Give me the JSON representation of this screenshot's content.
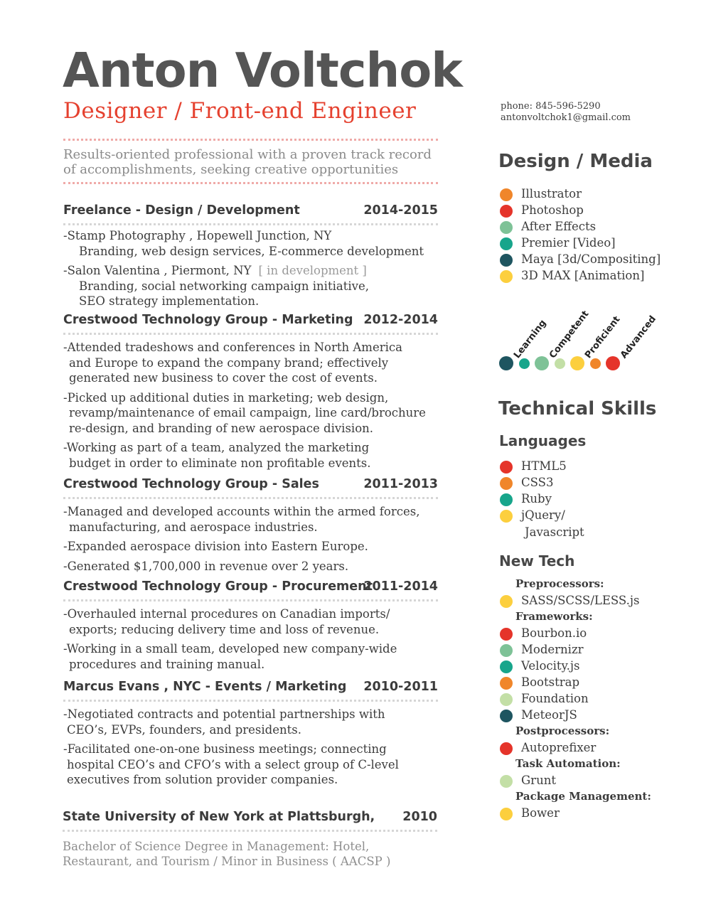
{
  "colors": {
    "accent_red": "#e5412f",
    "orange": "#f0862a",
    "red": "#e5342a",
    "sage": "#7ec297",
    "teal": "#17a58b",
    "dark_teal": "#1e5560",
    "yellow": "#fccf3e",
    "pale_green": "#c3dfa6"
  },
  "header": {
    "name": "Anton Voltchok",
    "title": "Designer / Front-end Engineer",
    "phone": "phone: 845-596-5290",
    "email": "antonvoltchok1@gmail.com"
  },
  "summary": {
    "line1": "Results-oriented professional with a proven track record",
    "line2": "of accomplishments, seeking creative opportunities"
  },
  "experience": [
    {
      "title": "Freelance - Design / Development",
      "years": "2014-2015",
      "entries": [
        {
          "lines": [
            "-Stamp Photography ,  Hopewell Junction, NY",
            "Branding, web design services, E-commerce development"
          ]
        },
        {
          "lines": [
            "-Salon Valentina  ,  Piermont, NY",
            "Branding, social networking campaign initiative,",
            "SEO strategy implementation."
          ],
          "note": "[ in development ]"
        }
      ]
    },
    {
      "title": "Crestwood Technology Group - Marketing",
      "years": "2012-2014",
      "entries": [
        {
          "lines": [
            "-Attended tradeshows and conferences in North America",
            "and Europe to expand the company brand; effectively",
            "generated new business to cover the cost of events."
          ]
        },
        {
          "lines": [
            "-Picked up additional duties in marketing; web design,",
            "revamp/maintenance of email campaign, line card/brochure",
            "re-design, and branding of new aerospace division."
          ]
        },
        {
          "lines": [
            "-Working as part of a team, analyzed the marketing",
            "budget in order to eliminate non profitable events."
          ]
        }
      ]
    },
    {
      "title": "Crestwood Technology Group - Sales",
      "years": "2011-2013",
      "entries": [
        {
          "lines": [
            "-Managed and developed accounts within the armed forces,",
            "manufacturing, and aerospace industries."
          ]
        },
        {
          "lines": [
            "-Expanded aerospace division into Eastern Europe."
          ]
        },
        {
          "lines": [
            "-Generated $1,700,000 in revenue over 2 years."
          ]
        }
      ]
    },
    {
      "title": "Crestwood Technology Group - Procurement",
      "years": "2011-2014",
      "entries": [
        {
          "lines": [
            "-Overhauled internal procedures on Canadian imports/",
            "exports; reducing delivery time and loss of revenue."
          ]
        },
        {
          "lines": [
            "-Working in a small team, developed new company-wide",
            "procedures and training manual."
          ]
        }
      ]
    },
    {
      "title": "Marcus Evans , NYC - Events / Marketing",
      "years": "2010-2011",
      "entries": [
        {
          "lines": [
            "-Negotiated contracts and potential partnerships with",
            "CEO’s,  EVPs, founders, and presidents."
          ]
        },
        {
          "lines": [
            "-Facilitated one-on-one business meetings; connecting",
            "hospital CEO’s and CFO’s with a select group of C-level",
            "executives from solution provider companies."
          ]
        }
      ]
    }
  ],
  "education": {
    "school": "State University of New York at Plattsburgh,",
    "year": "2010",
    "line1": "Bachelor of Science Degree in Management: Hotel,",
    "line2": "Restaurant, and Tourism / Minor in Business ( AACSP )"
  },
  "design_media": {
    "heading": "Design / Media",
    "items": [
      {
        "label": "Illustrator",
        "level": "orange"
      },
      {
        "label": "Photoshop",
        "level": "red"
      },
      {
        "label": "After Effects",
        "level": "sage"
      },
      {
        "label": "Premier [Video]",
        "level": "teal"
      },
      {
        "label": "Maya [3d/Compositing]",
        "level": "dark_teal"
      },
      {
        "label": "3D MAX [Animation]",
        "level": "yellow"
      }
    ]
  },
  "legend": {
    "labels": [
      "Learning",
      "Competent",
      "Proficient",
      "Advanced"
    ],
    "dots": [
      "dark_teal",
      "teal",
      "sage",
      "pale_green",
      "yellow",
      "orange",
      "red"
    ]
  },
  "technical": {
    "heading": "Technical Skills",
    "languages_heading": "Languages",
    "languages": [
      {
        "label": "HTML5",
        "level": "red"
      },
      {
        "label": "CSS3",
        "level": "orange"
      },
      {
        "label": "Ruby",
        "level": "teal"
      },
      {
        "label": "jQuery/",
        "level": "yellow"
      }
    ],
    "languages_cont": "Javascript",
    "newtech_heading": "New Tech",
    "categories": [
      {
        "name": "Preprocessors:",
        "items": [
          {
            "label": "SASS/SCSS/LESS.js",
            "level": "yellow"
          }
        ]
      },
      {
        "name": "Frameworks:",
        "items": [
          {
            "label": "Bourbon.io",
            "level": "red"
          },
          {
            "label": "Modernizr",
            "level": "sage"
          },
          {
            "label": "Velocity.js",
            "level": "teal"
          },
          {
            "label": "Bootstrap",
            "level": "orange"
          },
          {
            "label": "Foundation",
            "level": "pale_green"
          },
          {
            "label": "MeteorJS",
            "level": "dark_teal"
          }
        ]
      },
      {
        "name": "Postprocessors:",
        "items": [
          {
            "label": "Autoprefixer",
            "level": "red"
          }
        ]
      },
      {
        "name": "Task Automation:",
        "items": [
          {
            "label": "Grunt",
            "level": "pale_green"
          }
        ]
      },
      {
        "name": "Package Management:",
        "items": [
          {
            "label": "Bower",
            "level": "yellow"
          }
        ]
      }
    ]
  }
}
